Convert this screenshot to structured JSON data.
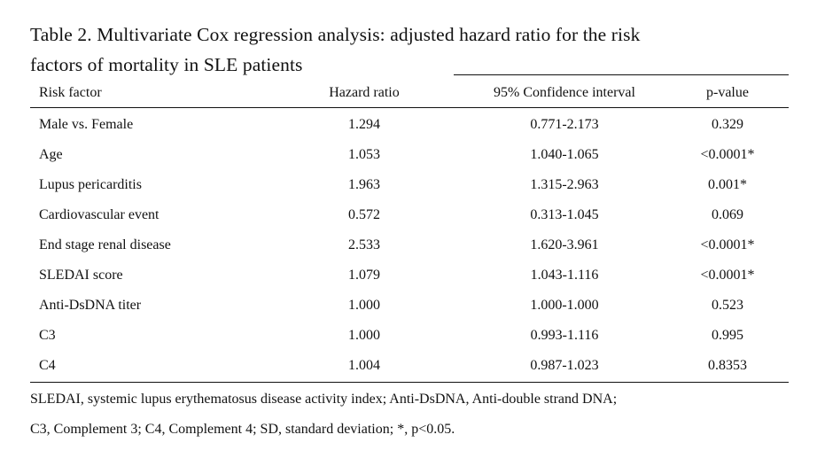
{
  "caption": {
    "line1": "Table 2. Multivariate Cox regression analysis: adjusted hazard ratio for the risk",
    "line2": "factors of mortality in SLE patients"
  },
  "columns": {
    "risk_factor": "Risk factor",
    "hazard_ratio": "Hazard ratio",
    "ci": "95% Confidence interval",
    "p_value": "p-value"
  },
  "rows": [
    {
      "factor": "Male vs. Female",
      "hr": "1.294",
      "ci": "0.771-2.173",
      "p": "0.329"
    },
    {
      "factor": "Age",
      "hr": "1.053",
      "ci": "1.040-1.065",
      "p": "<0.0001*"
    },
    {
      "factor": "Lupus pericarditis",
      "hr": "1.963",
      "ci": "1.315-2.963",
      "p": "0.001*"
    },
    {
      "factor": "Cardiovascular event",
      "hr": "0.572",
      "ci": "0.313-1.045",
      "p": "0.069"
    },
    {
      "factor": "End stage renal disease",
      "hr": "2.533",
      "ci": "1.620-3.961",
      "p": "<0.0001*"
    },
    {
      "factor": "SLEDAI score",
      "hr": "1.079",
      "ci": "1.043-1.116",
      "p": "<0.0001*"
    },
    {
      "factor": "Anti-DsDNA titer",
      "hr": "1.000",
      "ci": "1.000-1.000",
      "p": "0.523"
    },
    {
      "factor": "C3",
      "hr": "1.000",
      "ci": "0.993-1.116",
      "p": "0.995"
    },
    {
      "factor": "C4",
      "hr": "1.004",
      "ci": "0.987-1.023",
      "p": "0.8353"
    }
  ],
  "footnotes": {
    "line1": "SLEDAI, systemic lupus erythematosus disease activity index; Anti-DsDNA, Anti-double strand DNA;",
    "line2": "C3, Complement 3; C4, Complement 4; SD, standard deviation; *, p<0.05."
  }
}
